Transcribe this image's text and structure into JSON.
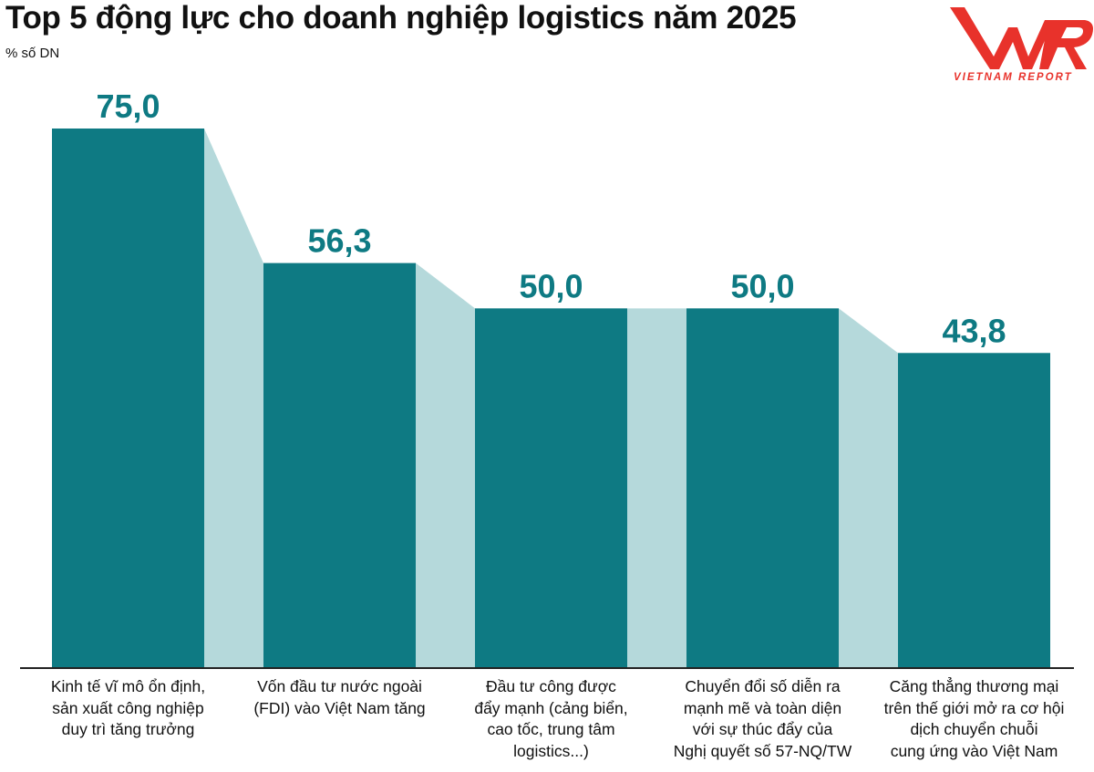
{
  "chart_data": {
    "type": "bar",
    "title": "Top 5 động lực cho doanh nghiệp logistics năm 2025",
    "ylabel": "% số DN",
    "categories": [
      "Kinh tế vĩ mô ổn định,\nsản xuất công nghiệp\nduy trì tăng trưởng",
      "Vốn đầu tư nước ngoài\n(FDI) vào Việt Nam tăng",
      "Đầu tư công được\nđẩy mạnh (cảng biển,\ncao tốc, trung tâm\nlogistics...)",
      "Chuyển đổi số diễn ra\nmạnh mẽ và toàn diện\nvới sự thúc đẩy của\nNghị quyết số 57-NQ/TW",
      "Căng thẳng thương mại\ntrên thế giới mở ra cơ hội\ndịch chuyển chuỗi\ncung ứng vào Việt Nam"
    ],
    "values": [
      75.0,
      56.3,
      50.0,
      50.0,
      43.8
    ],
    "value_labels": [
      "75,0",
      "56,3",
      "50,0",
      "50,0",
      "43,8"
    ],
    "ylim": [
      0,
      75
    ],
    "grid": false,
    "colors": {
      "bar": "#0e7a83",
      "connector": "#b5d9db",
      "label": "#0e7a83",
      "axis": "#222222"
    }
  },
  "logo": {
    "mark": "VNR",
    "text": "VIETNAM REPORT",
    "color": "#e8322b"
  }
}
